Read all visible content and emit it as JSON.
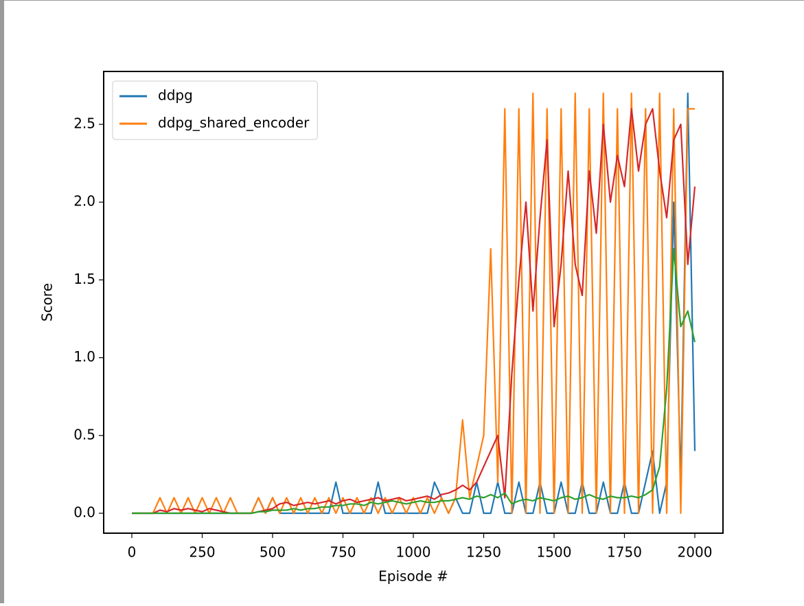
{
  "chart_data": {
    "type": "line",
    "xlabel": "Episode #",
    "ylabel": "Score",
    "xlim": [
      -100,
      2100
    ],
    "ylim": [
      -0.128,
      2.84
    ],
    "xticks": [
      0,
      250,
      500,
      750,
      1000,
      1250,
      1500,
      1750,
      2000
    ],
    "yticks": [
      {
        "value": 0,
        "label": "0.0"
      },
      {
        "value": 0.5,
        "label": "0.5"
      },
      {
        "value": 1,
        "label": "1.0"
      },
      {
        "value": 1.5,
        "label": "1.5"
      },
      {
        "value": 2,
        "label": "2.0"
      },
      {
        "value": 2.5,
        "label": "2.5"
      }
    ],
    "legend": "upper left",
    "x": [
      0,
      25,
      50,
      75,
      100,
      125,
      150,
      175,
      200,
      225,
      250,
      275,
      300,
      325,
      350,
      375,
      400,
      425,
      450,
      475,
      500,
      525,
      550,
      575,
      600,
      625,
      650,
      675,
      700,
      725,
      750,
      775,
      800,
      825,
      850,
      875,
      900,
      925,
      950,
      975,
      1000,
      1025,
      1050,
      1075,
      1100,
      1125,
      1150,
      1175,
      1200,
      1225,
      1250,
      1275,
      1300,
      1325,
      1350,
      1375,
      1400,
      1425,
      1450,
      1475,
      1500,
      1525,
      1550,
      1575,
      1600,
      1625,
      1650,
      1675,
      1700,
      1725,
      1750,
      1775,
      1800,
      1825,
      1850,
      1875,
      1900,
      1925,
      1950,
      1975,
      2000
    ],
    "series": [
      {
        "name": "ddpg",
        "color": "#1f77b4",
        "values": [
          0,
          0,
          0,
          0,
          0,
          0,
          0,
          0,
          0,
          0,
          0,
          0,
          0,
          0,
          0,
          0,
          0,
          0,
          0.1,
          0,
          0.1,
          0,
          0,
          0,
          0,
          0,
          0,
          0,
          0,
          0.2,
          0,
          0,
          0,
          0,
          0,
          0.2,
          0,
          0,
          0,
          0,
          0,
          0,
          0,
          0.2,
          0.1,
          0,
          0.1,
          0,
          0,
          0.2,
          0,
          0,
          0.2,
          0,
          0,
          0.2,
          0,
          0,
          0.2,
          0,
          0,
          0.2,
          0,
          0,
          0.2,
          0,
          0,
          0.2,
          0,
          0,
          0.2,
          0,
          0,
          0.2,
          0.4,
          0,
          0.2,
          2.0,
          0.2,
          2.7,
          0.4
        ]
      },
      {
        "name": "ddpg_shared_encoder",
        "color": "#ff7f0e",
        "values": [
          0,
          0,
          0,
          0,
          0.1,
          0,
          0.1,
          0,
          0.1,
          0,
          0.1,
          0,
          0.1,
          0,
          0.1,
          0,
          0,
          0,
          0.1,
          0,
          0.1,
          0,
          0.1,
          0,
          0.1,
          0,
          0.1,
          0,
          0.1,
          0,
          0.1,
          0,
          0.1,
          0,
          0.1,
          0,
          0.1,
          0,
          0.1,
          0,
          0.1,
          0,
          0.1,
          0,
          0.1,
          0,
          0.1,
          0.6,
          0.1,
          0.3,
          0.5,
          1.7,
          0.2,
          2.6,
          0,
          2.6,
          0,
          2.7,
          0,
          2.6,
          0,
          2.6,
          0,
          2.7,
          0,
          2.6,
          0,
          2.7,
          0,
          2.6,
          0,
          2.7,
          0,
          2.6,
          0,
          2.7,
          0,
          2.6,
          0,
          2.6,
          2.6
        ]
      },
      {
        "color": "#d62728",
        "values": [
          0,
          0,
          0,
          0,
          0.02,
          0.01,
          0.03,
          0.02,
          0.03,
          0.02,
          0.01,
          0.03,
          0.02,
          0.01,
          0,
          0,
          0,
          0,
          0.01,
          0.02,
          0.03,
          0.06,
          0.07,
          0.05,
          0.06,
          0.07,
          0.06,
          0.07,
          0.08,
          0.06,
          0.08,
          0.09,
          0.07,
          0.08,
          0.09,
          0.1,
          0.08,
          0.09,
          0.1,
          0.08,
          0.09,
          0.1,
          0.11,
          0.09,
          0.12,
          0.13,
          0.15,
          0.18,
          0.15,
          0.2,
          0.3,
          0.4,
          0.5,
          0.1,
          0.9,
          1.5,
          2.0,
          1.3,
          1.9,
          2.4,
          1.2,
          1.6,
          2.2,
          1.6,
          1.4,
          2.2,
          1.8,
          2.5,
          2.0,
          2.3,
          2.1,
          2.6,
          2.2,
          2.5,
          2.6,
          2.2,
          1.9,
          2.4,
          2.5,
          1.6,
          2.1
        ]
      },
      {
        "color": "#2ca02c",
        "values": [
          0,
          0,
          0,
          0,
          0,
          0,
          0,
          0,
          0,
          0,
          0,
          0,
          0,
          0,
          0,
          0,
          0,
          0,
          0.01,
          0.01,
          0.02,
          0.02,
          0.02,
          0.03,
          0.02,
          0.03,
          0.03,
          0.04,
          0.04,
          0.05,
          0.05,
          0.06,
          0.06,
          0.05,
          0.07,
          0.06,
          0.07,
          0.08,
          0.07,
          0.06,
          0.07,
          0.08,
          0.07,
          0.07,
          0.08,
          0.08,
          0.09,
          0.1,
          0.09,
          0.11,
          0.1,
          0.12,
          0.1,
          0.13,
          0.06,
          0.08,
          0.09,
          0.08,
          0.1,
          0.09,
          0.08,
          0.1,
          0.11,
          0.09,
          0.1,
          0.12,
          0.1,
          0.09,
          0.11,
          0.1,
          0.1,
          0.11,
          0.1,
          0.12,
          0.15,
          0.3,
          0.8,
          1.7,
          1.2,
          1.3,
          1.1
        ]
      }
    ]
  }
}
